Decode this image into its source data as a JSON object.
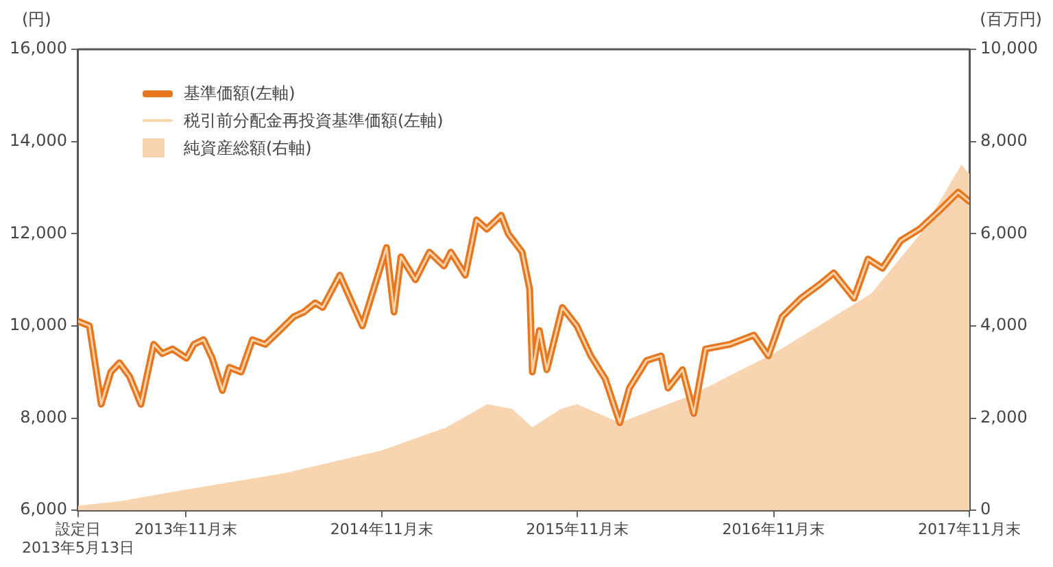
{
  "chart_data": {
    "type": "line",
    "ylabel": "(円)",
    "y2label": "(百万円)",
    "legend": "top left",
    "grid": false,
    "marker": "none",
    "xlim": [
      "2013-05-13",
      "2017-11-30"
    ],
    "xticks": [
      {
        "value": "2013-05-13",
        "label": "設定日\n2013年5月13日"
      },
      {
        "value": "2013-11-30",
        "label": "2013年11月末"
      },
      {
        "value": "2014-11-30",
        "label": "2014年11月末"
      },
      {
        "value": "2015-11-30",
        "label": "2015年11月末"
      },
      {
        "value": "2016-11-30",
        "label": "2016年11月末"
      },
      {
        "value": "2017-11-30",
        "label": "2017年11月末"
      }
    ],
    "ylim": [
      6000,
      16000
    ],
    "yticks": [
      {
        "value": 6000,
        "label": "6,000"
      },
      {
        "value": 8000,
        "label": "8,000"
      },
      {
        "value": 10000,
        "label": "10,000"
      },
      {
        "value": 12000,
        "label": "12,000"
      },
      {
        "value": 14000,
        "label": "14,000"
      },
      {
        "value": 16000,
        "label": "16,000"
      }
    ],
    "y2lim": [
      0,
      10000
    ],
    "y2ticks": [
      0,
      {
        "value": 2000,
        "label": "2,000"
      },
      {
        "value": 4000,
        "label": "4,000"
      },
      {
        "value": 6000,
        "label": "6,000"
      },
      {
        "value": 8000,
        "label": "8,000"
      },
      {
        "value": 10000,
        "label": "10,000"
      }
    ],
    "x": [
      "2013-05-13",
      "2013-06-03",
      "2013-06-25",
      "2013-07-13",
      "2013-07-29",
      "2013-08-17",
      "2013-09-07",
      "2013-10-01",
      "2013-10-17",
      "2013-11-05",
      "2013-12-01",
      "2013-12-15",
      "2014-01-02",
      "2014-01-18",
      "2014-02-06",
      "2014-02-19",
      "2014-03-13",
      "2014-04-03",
      "2014-04-27",
      "2014-05-24",
      "2014-06-19",
      "2014-07-08",
      "2014-07-29",
      "2014-08-12",
      "2014-09-13",
      "2014-10-25",
      "2014-12-09",
      "2014-12-23",
      "2015-01-05",
      "2015-02-01",
      "2015-02-27",
      "2015-03-26",
      "2015-04-08",
      "2015-05-05",
      "2015-05-26",
      "2015-06-14",
      "2015-07-11",
      "2015-07-24",
      "2015-08-19",
      "2015-09-02",
      "2015-09-07",
      "2015-09-20",
      "2015-10-04",
      "2015-11-02",
      "2015-11-29",
      "2015-12-25",
      "2016-01-21",
      "2016-02-17",
      "2016-03-06",
      "2016-04-07",
      "2016-05-04",
      "2016-05-17",
      "2016-06-13",
      "2016-07-04",
      "2016-07-26",
      "2016-09-09",
      "2016-10-24",
      "2016-11-20",
      "2016-12-16",
      "2017-01-20",
      "2017-02-24",
      "2017-03-22",
      "2017-04-29",
      "2017-05-25",
      "2017-06-21",
      "2017-07-25",
      "2017-08-29",
      "2017-10-05",
      "2017-11-09",
      "2017-11-30"
    ],
    "series": [
      {
        "name": "基準価額(左軸)",
        "type": "line",
        "color": "#e8761e",
        "values": [
          10100,
          10000,
          8300,
          9000,
          9200,
          8900,
          8300,
          9600,
          9400,
          9500,
          9300,
          9600,
          9700,
          9300,
          8600,
          9100,
          9000,
          9700,
          9600,
          9900,
          10200,
          10300,
          10500,
          10400,
          11100,
          10000,
          11700,
          10300,
          11500,
          11000,
          11600,
          11300,
          11600,
          11100,
          12300,
          12100,
          12400,
          12000,
          11600,
          10800,
          9000,
          9900,
          9050,
          10400,
          10000,
          9350,
          8850,
          7900,
          8650,
          9250,
          9350,
          8650,
          9050,
          8100,
          9500,
          9600,
          9800,
          9350,
          10200,
          10600,
          10900,
          11150,
          10600,
          11450,
          11250,
          11850,
          12100,
          12500,
          12900,
          12700
        ]
      },
      {
        "name": "税引前分配金再投資基準価額(左軸)",
        "type": "line",
        "color": "#fbd3a8",
        "values": [
          10100,
          10000,
          8300,
          9000,
          9200,
          8900,
          8300,
          9600,
          9400,
          9500,
          9300,
          9600,
          9700,
          9300,
          8600,
          9100,
          9000,
          9700,
          9600,
          9900,
          10200,
          10300,
          10500,
          10400,
          11100,
          10000,
          11700,
          10300,
          11500,
          11000,
          11600,
          11300,
          11600,
          11100,
          12300,
          12100,
          12400,
          12000,
          11600,
          10800,
          9000,
          9900,
          9050,
          10400,
          10000,
          9350,
          8850,
          7900,
          8650,
          9250,
          9350,
          8650,
          9050,
          8100,
          9500,
          9600,
          9800,
          9350,
          10200,
          10600,
          10900,
          11150,
          10600,
          11450,
          11250,
          11850,
          12100,
          12500,
          12900,
          12700
        ]
      },
      {
        "name": "純資産総額(右軸)",
        "type": "area",
        "axis": "y2",
        "color": "#f9d4b0",
        "x": [
          "2013-05-13",
          "2013-08-01",
          "2013-11-30",
          "2014-05-31",
          "2014-11-30",
          "2015-03-31",
          "2015-06-15",
          "2015-07-31",
          "2015-09-07",
          "2015-10-31",
          "2015-11-29",
          "2016-02-17",
          "2016-06-30",
          "2016-11-30",
          "2017-05-31",
          "2017-08-31",
          "2017-10-31",
          "2017-11-15",
          "2017-11-30"
        ],
        "values": [
          100,
          200,
          450,
          800,
          1300,
          1800,
          2300,
          2200,
          1800,
          2200,
          2300,
          1900,
          2500,
          3400,
          4700,
          6000,
          7200,
          7500,
          7300
        ]
      }
    ]
  }
}
